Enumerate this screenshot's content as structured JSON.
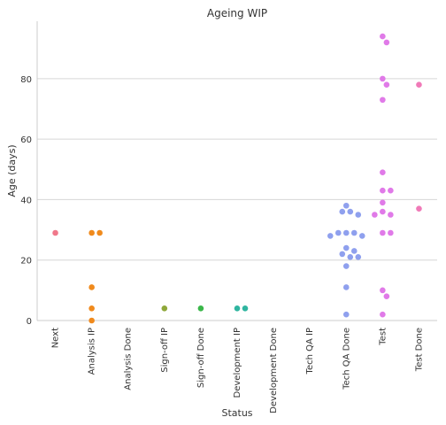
{
  "chart_data": {
    "type": "scatter",
    "title": "Ageing WIP",
    "xlabel": "Status",
    "ylabel": "Age (days)",
    "ylim": [
      0,
      99
    ],
    "yticks": [
      0,
      20,
      40,
      60,
      80
    ],
    "grid": "horizontal",
    "categories": [
      "Next",
      "Analysis IP",
      "Analysis Done",
      "Sign-off IP",
      "Sign-off Done",
      "Development IP",
      "Development Done",
      "Tech QA IP",
      "Tech QA Done",
      "Test",
      "Test Done"
    ],
    "colors": [
      "#f0788a",
      "#f08a1c",
      "#b89a1e",
      "#8fa83a",
      "#3ab74a",
      "#2fb5a0",
      "#30aec0",
      "#4aa6de",
      "#8fa0ee",
      "#e07ae8",
      "#f07ab8"
    ],
    "points": [
      {
        "category": "Next",
        "value": 29
      },
      {
        "category": "Analysis IP",
        "value": 29
      },
      {
        "category": "Analysis IP",
        "value": 29
      },
      {
        "category": "Analysis IP",
        "value": 11
      },
      {
        "category": "Analysis IP",
        "value": 4
      },
      {
        "category": "Analysis IP",
        "value": 0
      },
      {
        "category": "Sign-off IP",
        "value": 4
      },
      {
        "category": "Sign-off Done",
        "value": 4
      },
      {
        "category": "Development IP",
        "value": 4
      },
      {
        "category": "Development IP",
        "value": 4
      },
      {
        "category": "Tech QA Done",
        "value": 38
      },
      {
        "category": "Tech QA Done",
        "value": 36
      },
      {
        "category": "Tech QA Done",
        "value": 36
      },
      {
        "category": "Tech QA Done",
        "value": 35
      },
      {
        "category": "Tech QA Done",
        "value": 29
      },
      {
        "category": "Tech QA Done",
        "value": 29
      },
      {
        "category": "Tech QA Done",
        "value": 29
      },
      {
        "category": "Tech QA Done",
        "value": 28
      },
      {
        "category": "Tech QA Done",
        "value": 28
      },
      {
        "category": "Tech QA Done",
        "value": 24
      },
      {
        "category": "Tech QA Done",
        "value": 23
      },
      {
        "category": "Tech QA Done",
        "value": 22
      },
      {
        "category": "Tech QA Done",
        "value": 21
      },
      {
        "category": "Tech QA Done",
        "value": 21
      },
      {
        "category": "Tech QA Done",
        "value": 18
      },
      {
        "category": "Tech QA Done",
        "value": 11
      },
      {
        "category": "Tech QA Done",
        "value": 2
      },
      {
        "category": "Test",
        "value": 94
      },
      {
        "category": "Test",
        "value": 92
      },
      {
        "category": "Test",
        "value": 80
      },
      {
        "category": "Test",
        "value": 78
      },
      {
        "category": "Test",
        "value": 73
      },
      {
        "category": "Test",
        "value": 49
      },
      {
        "category": "Test",
        "value": 43
      },
      {
        "category": "Test",
        "value": 43
      },
      {
        "category": "Test",
        "value": 39
      },
      {
        "category": "Test",
        "value": 36
      },
      {
        "category": "Test",
        "value": 35
      },
      {
        "category": "Test",
        "value": 35
      },
      {
        "category": "Test",
        "value": 29
      },
      {
        "category": "Test",
        "value": 29
      },
      {
        "category": "Test",
        "value": 10
      },
      {
        "category": "Test",
        "value": 8
      },
      {
        "category": "Test",
        "value": 2
      },
      {
        "category": "Test Done",
        "value": 78
      },
      {
        "category": "Test Done",
        "value": 37
      }
    ]
  }
}
